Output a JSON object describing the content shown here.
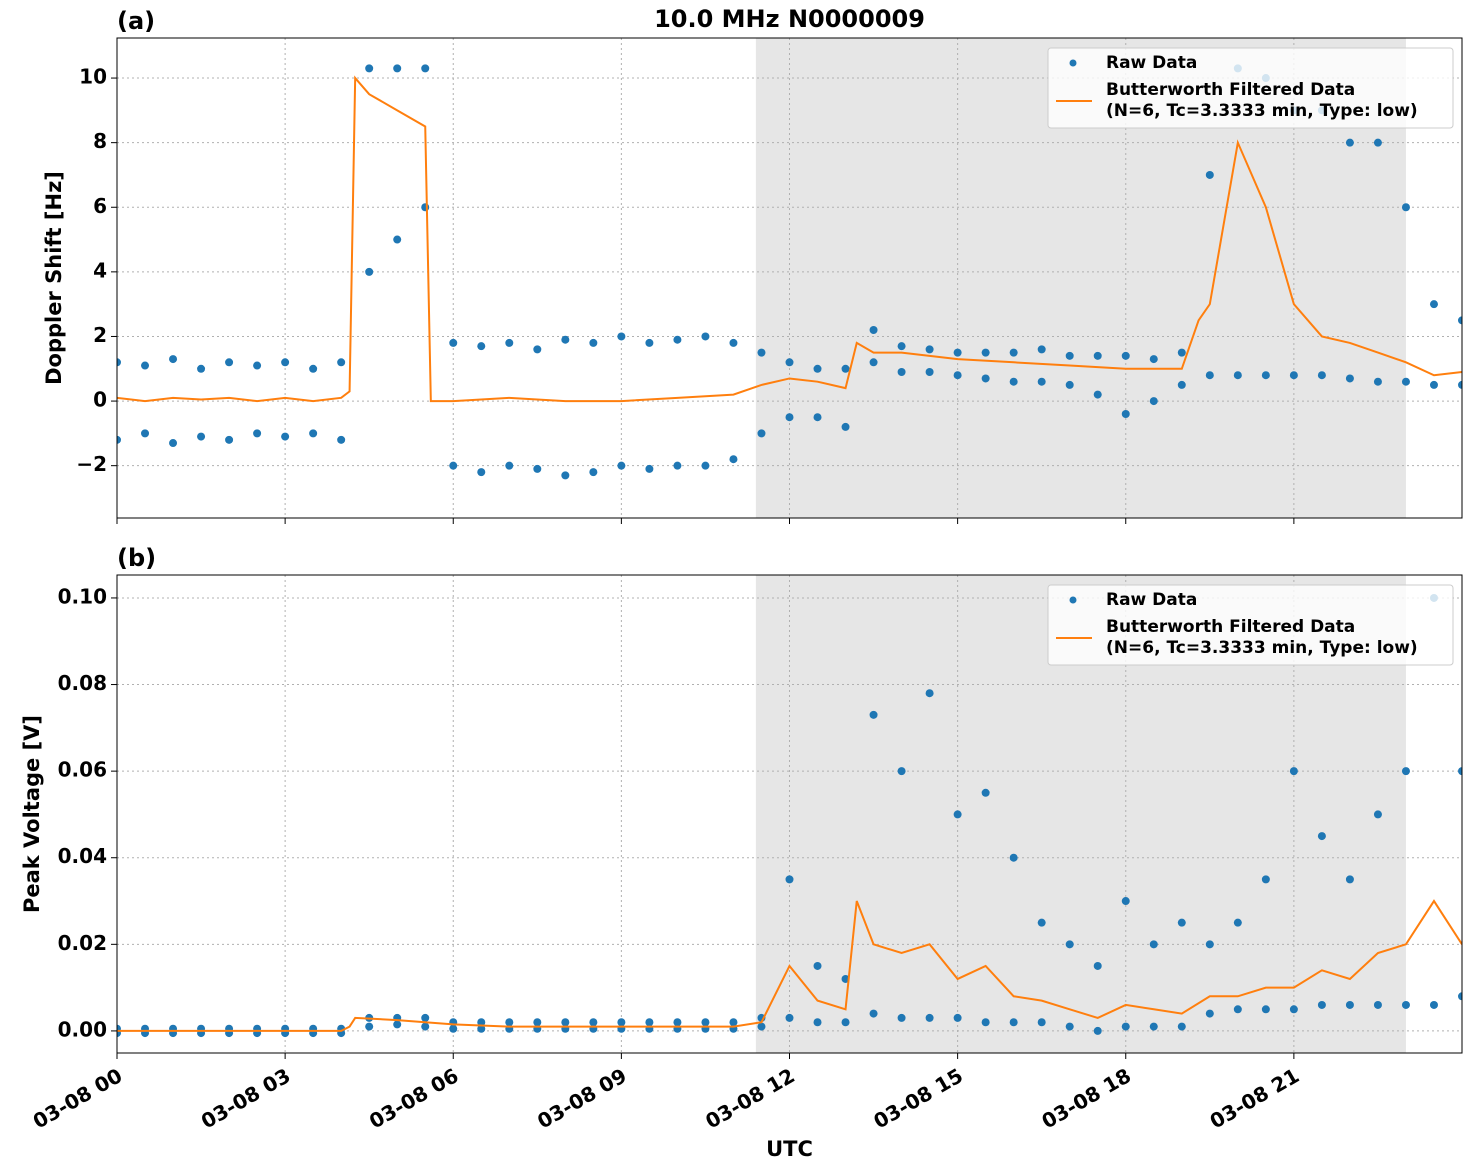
{
  "chart_data": [
    {
      "type": "scatter-line",
      "title": "10.0 MHz N0000009",
      "panel_label": "(a)",
      "ylabel": "Doppler Shift [Hz]",
      "xlim": [
        0,
        24
      ],
      "xticks": [
        0,
        3,
        6,
        9,
        12,
        15,
        18,
        21
      ],
      "ylim": [
        -3.62,
        11.24
      ],
      "yticks": [
        {
          "value": -2,
          "label": "−2"
        },
        0,
        2,
        4,
        6,
        8,
        10
      ],
      "grid": true,
      "legend": "upper right",
      "shade": [
        11.4,
        23.0
      ],
      "shade_color": "#e6e6e6",
      "series": [
        {
          "name": "Raw Data",
          "color": "#1f77b4",
          "kind": "points",
          "x": [
            0,
            0.5,
            1,
            1.5,
            2,
            2.5,
            3,
            3.5,
            4,
            4.5,
            5,
            5.5,
            6,
            6.5,
            7,
            7.5,
            8,
            8.5,
            9,
            9.5,
            10,
            10.5,
            11,
            11.5,
            12,
            12.5,
            13,
            13.5,
            14,
            14.5,
            15,
            15.5,
            16,
            16.5,
            17,
            17.5,
            18,
            18.5,
            19,
            19.5,
            20,
            20.5,
            21,
            21.5,
            22,
            22.5,
            23,
            23.5,
            24,
            0,
            0.5,
            1,
            1.5,
            2,
            2.5,
            3,
            3.5,
            4,
            4.5,
            5,
            5.5,
            6,
            6.5,
            7,
            7.5,
            8,
            8.5,
            9,
            9.5,
            10,
            10.5,
            11,
            11.5,
            12,
            12.5,
            13,
            13.5,
            14,
            14.5,
            15,
            15.5,
            16,
            16.5,
            17,
            17.5,
            18,
            18.5,
            19,
            19.5,
            20,
            20.5,
            21,
            21.5,
            22,
            22.5,
            23,
            23.5,
            24
          ],
          "values": [
            1.2,
            1.1,
            1.3,
            1.0,
            1.2,
            1.1,
            1.2,
            1.0,
            1.2,
            10.3,
            10.3,
            10.3,
            1.8,
            1.7,
            1.8,
            1.6,
            1.9,
            1.8,
            2.0,
            1.8,
            1.9,
            2.0,
            1.8,
            1.5,
            1.2,
            1.0,
            1.0,
            2.2,
            1.7,
            1.6,
            1.5,
            1.5,
            1.5,
            1.6,
            1.4,
            1.4,
            1.4,
            1.3,
            1.5,
            7.0,
            10.3,
            10.0,
            9.0,
            9.0,
            8.0,
            8.0,
            6.0,
            3.0,
            2.5,
            -1.2,
            -1.0,
            -1.3,
            -1.1,
            -1.2,
            -1.0,
            -1.1,
            -1.0,
            -1.2,
            4.0,
            5.0,
            6.0,
            -2.0,
            -2.2,
            -2.0,
            -2.1,
            -2.3,
            -2.2,
            -2.0,
            -2.1,
            -2.0,
            -2.0,
            -1.8,
            -1.0,
            -0.5,
            -0.5,
            -0.8,
            1.2,
            0.9,
            0.9,
            0.8,
            0.7,
            0.6,
            0.6,
            0.5,
            0.2,
            -0.4,
            0.0,
            0.5,
            0.8,
            0.8,
            0.8,
            0.8,
            0.8,
            0.7,
            0.6,
            0.6,
            0.5,
            0.5
          ]
        },
        {
          "name": "Butterworth Filtered Data\n(N=6, Tc=3.3333 min, Type: low)",
          "color": "#ff7f0e",
          "kind": "line",
          "x": [
            0,
            0.5,
            1,
            1.5,
            2,
            2.5,
            3,
            3.5,
            4,
            4.15,
            4.25,
            4.5,
            5,
            5.5,
            5.6,
            6,
            7,
            8,
            9,
            10,
            11,
            11.5,
            12,
            12.5,
            13,
            13.2,
            13.5,
            14,
            15,
            16,
            17,
            18,
            19,
            19.3,
            19.5,
            20,
            20.5,
            21,
            21.5,
            22,
            22.5,
            23,
            23.5,
            24
          ],
          "values": [
            0.1,
            0,
            0.1,
            0.05,
            0.1,
            0,
            0.1,
            0,
            0.1,
            0.3,
            10,
            9.5,
            9,
            8.5,
            0,
            0,
            0.1,
            0,
            0,
            0.1,
            0.2,
            0.5,
            0.7,
            0.6,
            0.4,
            1.8,
            1.5,
            1.5,
            1.3,
            1.2,
            1.1,
            1.0,
            1.0,
            2.5,
            3,
            8,
            6,
            3,
            2,
            1.8,
            1.5,
            1.2,
            0.8,
            0.9
          ]
        }
      ]
    },
    {
      "type": "scatter-line",
      "panel_label": "(b)",
      "ylabel": "Peak Voltage [V]",
      "xlabel": "UTC",
      "xlim": [
        0,
        24
      ],
      "xticks": [
        {
          "value": 0,
          "label": "03-08 00"
        },
        {
          "value": 3,
          "label": "03-08 03"
        },
        {
          "value": 6,
          "label": "03-08 06"
        },
        {
          "value": 9,
          "label": "03-08 09"
        },
        {
          "value": 12,
          "label": "03-08 12"
        },
        {
          "value": 15,
          "label": "03-08 15"
        },
        {
          "value": 18,
          "label": "03-08 18"
        },
        {
          "value": 21,
          "label": "03-08 21"
        }
      ],
      "ylim": [
        -0.0051,
        0.1053
      ],
      "yticks": [
        {
          "value": 0,
          "label": "0.00"
        },
        0.02,
        0.04,
        0.06,
        0.08,
        {
          "value": 0.1,
          "label": "0.10"
        }
      ],
      "grid": true,
      "legend": "upper right",
      "shade": [
        11.4,
        23.0
      ],
      "shade_color": "#e6e6e6",
      "series": [
        {
          "name": "Raw Data",
          "color": "#1f77b4",
          "kind": "points",
          "x": [
            0,
            0.5,
            1,
            1.5,
            2,
            2.5,
            3,
            3.5,
            4,
            4.5,
            5,
            5.5,
            6,
            6.5,
            7,
            7.5,
            8,
            8.5,
            9,
            9.5,
            10,
            10.5,
            11,
            11.5,
            12,
            12.5,
            13,
            13.5,
            14,
            14.5,
            15,
            15.5,
            16,
            16.5,
            17,
            17.5,
            18,
            18.5,
            19,
            19.5,
            20,
            20.5,
            21,
            21.5,
            22,
            22.5,
            23,
            23.5,
            24,
            0,
            0.5,
            1,
            1.5,
            2,
            2.5,
            3,
            3.5,
            4,
            4.5,
            5,
            5.5,
            6,
            6.5,
            7,
            7.5,
            8,
            8.5,
            9,
            9.5,
            10,
            10.5,
            11,
            11.5,
            12,
            12.5,
            13,
            13.5,
            14,
            14.5,
            15,
            15.5,
            16,
            16.5,
            17,
            17.5,
            18,
            18.5,
            19,
            19.5,
            20,
            20.5,
            21,
            21.5,
            22,
            22.5,
            23,
            23.5,
            24
          ],
          "values": [
            0.0005,
            0.0005,
            0.0005,
            0.0005,
            0.0005,
            0.0005,
            0.0005,
            0.0005,
            0.0005,
            0.003,
            0.003,
            0.003,
            0.002,
            0.002,
            0.002,
            0.002,
            0.002,
            0.002,
            0.002,
            0.002,
            0.002,
            0.002,
            0.002,
            0.003,
            0.035,
            0.015,
            0.012,
            0.073,
            0.06,
            0.078,
            0.05,
            0.055,
            0.04,
            0.025,
            0.02,
            0.015,
            0.03,
            0.02,
            0.025,
            0.02,
            0.025,
            0.035,
            0.06,
            0.045,
            0.035,
            0.05,
            0.06,
            0.1,
            0.06,
            -0.0005,
            -0.0005,
            -0.0005,
            -0.0005,
            -0.0005,
            -0.0005,
            -0.0005,
            -0.0005,
            -0.0005,
            0.001,
            0.0015,
            0.001,
            0.0005,
            0.0005,
            0.0005,
            0.0005,
            0.0005,
            0.0005,
            0.0005,
            0.0005,
            0.0005,
            0.0005,
            0.0005,
            0.001,
            0.003,
            0.002,
            0.002,
            0.004,
            0.003,
            0.003,
            0.003,
            0.002,
            0.002,
            0.002,
            0.001,
            0,
            0.001,
            0.001,
            0.001,
            0.004,
            0.005,
            0.005,
            0.005,
            0.006,
            0.006,
            0.006,
            0.006,
            0.006,
            0.008
          ]
        },
        {
          "name": "Butterworth Filtered Data\n(N=6, Tc=3.3333 min, Type: low)",
          "color": "#ff7f0e",
          "kind": "line",
          "x": [
            0,
            1,
            2,
            3,
            4,
            4.15,
            4.25,
            5,
            6,
            7,
            8,
            9,
            10,
            11,
            11.5,
            12,
            12.5,
            13,
            13.2,
            13.5,
            14,
            14.5,
            15,
            15.5,
            16,
            16.5,
            17,
            17.5,
            18,
            18.5,
            19,
            19.5,
            20,
            20.5,
            21,
            21.5,
            22,
            22.5,
            23,
            23.5,
            24
          ],
          "values": [
            0,
            0,
            0,
            0,
            0,
            0.001,
            0.003,
            0.0025,
            0.0015,
            0.001,
            0.001,
            0.001,
            0.001,
            0.001,
            0.002,
            0.015,
            0.007,
            0.005,
            0.03,
            0.02,
            0.018,
            0.02,
            0.012,
            0.015,
            0.008,
            0.007,
            0.005,
            0.003,
            0.006,
            0.005,
            0.004,
            0.008,
            0.008,
            0.01,
            0.01,
            0.014,
            0.012,
            0.018,
            0.02,
            0.03,
            0.02
          ]
        }
      ]
    }
  ]
}
